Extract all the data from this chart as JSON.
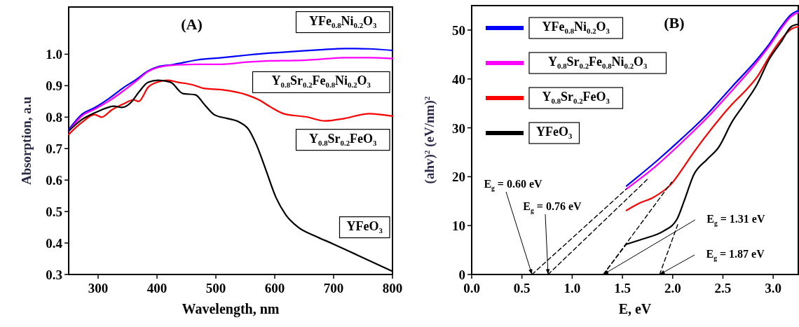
{
  "chart_data": [
    {
      "type": "line",
      "title": "(A)",
      "xlabel": "Wavelength, nm",
      "ylabel": "Absorption, a.u",
      "xlim": [
        250,
        800
      ],
      "ylim": [
        0.3,
        1.15
      ],
      "xticks": [
        300,
        400,
        500,
        600,
        700,
        800
      ],
      "yticks": [
        0.3,
        0.4,
        0.5,
        0.6,
        0.7,
        0.8,
        0.9,
        {
          "value": 1,
          "label": "1.0"
        }
      ],
      "legend": false,
      "series": [
        {
          "name": "YFe$_{0.8}$Ni$_{0.2}$O$_{3}$",
          "color": "#0000ff",
          "x": [
            250,
            273,
            294,
            319,
            344,
            365,
            385,
            402,
            427,
            469,
            510,
            552,
            594,
            635,
            677,
            719,
            760,
            800
          ],
          "values": [
            0.76,
            0.81,
            0.83,
            0.86,
            0.895,
            0.92,
            0.947,
            0.96,
            0.967,
            0.982,
            0.989,
            0.997,
            1.004,
            1.009,
            1.014,
            1.018,
            1.017,
            1.012
          ]
        },
        {
          "name": "Y$_{0.8}$Sr$_{0.2}$Fe$_{0.8}$Ni$_{0.2}$O$_{3}$",
          "color": "#ff00ff",
          "x": [
            250,
            273,
            294,
            319,
            344,
            365,
            385,
            402,
            427,
            469,
            510,
            552,
            594,
            635,
            677,
            719,
            760,
            800
          ],
          "values": [
            0.755,
            0.805,
            0.825,
            0.852,
            0.885,
            0.915,
            0.945,
            0.958,
            0.965,
            0.968,
            0.968,
            0.975,
            0.979,
            0.98,
            0.984,
            0.989,
            0.989,
            0.986
          ]
        },
        {
          "name": "Y$_{0.8}$Sr$_{0.2}$FeO$_{3}$",
          "color": "#ff0000",
          "x": [
            250,
            273,
            294,
            306,
            323,
            344,
            360,
            369,
            385,
            402,
            419,
            435,
            460,
            481,
            510,
            552,
            573,
            594,
            615,
            656,
            685,
            719,
            760,
            800
          ],
          "values": [
            0.745,
            0.784,
            0.808,
            0.8,
            0.823,
            0.843,
            0.855,
            0.85,
            0.895,
            0.912,
            0.917,
            0.911,
            0.903,
            0.891,
            0.887,
            0.871,
            0.855,
            0.831,
            0.811,
            0.8,
            0.788,
            0.796,
            0.811,
            0.803
          ]
        },
        {
          "name": "YFeO$_{3}$",
          "color": "#000000",
          "x": [
            250,
            273,
            302,
            327,
            340,
            356,
            369,
            385,
            402,
            423,
            444,
            465,
            481,
            498,
            519,
            540,
            556,
            569,
            585,
            602,
            619,
            640,
            669,
            698,
            740,
            800
          ],
          "values": [
            0.756,
            0.793,
            0.82,
            0.835,
            0.831,
            0.847,
            0.879,
            0.911,
            0.917,
            0.911,
            0.875,
            0.871,
            0.839,
            0.807,
            0.796,
            0.784,
            0.76,
            0.712,
            0.632,
            0.545,
            0.489,
            0.45,
            0.422,
            0.398,
            0.362,
            0.31
          ]
        }
      ]
    },
    {
      "type": "line",
      "title": "(B)",
      "xlabel": "E, eV",
      "ylabel": "(ahv)$^{2}$ (eV/nm)$^{2}$",
      "xlim": [
        0,
        3.25
      ],
      "ylim": [
        0,
        55
      ],
      "xticks": [
        {
          "value": 0,
          "label": "0.0"
        },
        0.5,
        {
          "value": 1,
          "label": "1.0"
        },
        1.5,
        {
          "value": 2,
          "label": "2.0"
        },
        2.5,
        {
          "value": 3,
          "label": "3.0"
        }
      ],
      "yticks": [
        0,
        10,
        20,
        30,
        40,
        50
      ],
      "legend": "top left",
      "series": [
        {
          "name": "YFe$_{0.8}$Ni$_{0.2}$O$_{3}$",
          "color": "#0000ff",
          "x": [
            1.54,
            1.84,
            2.09,
            2.34,
            2.59,
            2.84,
            2.96,
            3.08,
            3.18,
            3.25
          ],
          "values": [
            18.1,
            23.2,
            27.8,
            32.7,
            38.4,
            44,
            47.1,
            50.7,
            53.2,
            54
          ]
        },
        {
          "name": "Y$_{0.8}$Sr$_{0.2}$Fe$_{0.8}$Ni$_{0.2}$O$_{3}$",
          "color": "#ff00ff",
          "x": [
            1.54,
            1.84,
            2.09,
            2.34,
            2.59,
            2.84,
            2.96,
            3.08,
            3.18,
            3.25
          ],
          "values": [
            17.5,
            22.3,
            27,
            32,
            37.6,
            43.5,
            46.7,
            50.3,
            52.8,
            53.6
          ]
        },
        {
          "name": "Y$_{0.8}$Sr$_{0.2}$FeO$_{3}$",
          "color": "#ff0000",
          "x": [
            1.54,
            1.66,
            1.81,
            1.99,
            2.09,
            2.21,
            2.46,
            2.59,
            2.71,
            2.84,
            2.96,
            3.08,
            3.18,
            3.25
          ],
          "values": [
            13.1,
            14.5,
            15.8,
            18.6,
            21.4,
            25,
            31.7,
            34.8,
            37.3,
            40.4,
            44.5,
            48.1,
            50.2,
            50.7
          ]
        },
        {
          "name": "YFeO$_{3}$",
          "color": "#000000",
          "x": [
            1.54,
            1.71,
            1.91,
            2.04,
            2.11,
            2.21,
            2.34,
            2.46,
            2.59,
            2.71,
            2.84,
            2.96,
            3.08,
            3.18,
            3.25
          ],
          "values": [
            6.2,
            7.3,
            8.9,
            11.2,
            14.8,
            20.4,
            23.5,
            26.1,
            31.2,
            34.8,
            38.9,
            44,
            47.6,
            50.7,
            51.2
          ]
        },
        {
          "type": "line",
          "line_style": "dashed",
          "color": "#000000",
          "x": [
            0.6,
            1.54
          ],
          "values": [
            0,
            17.5
          ]
        },
        {
          "type": "line",
          "line_style": "dashed",
          "color": "#000000",
          "x": [
            0.76,
            1.75
          ],
          "values": [
            0,
            19.5
          ]
        },
        {
          "type": "line",
          "line_style": "dashed",
          "color": "#000000",
          "x": [
            1.31,
            1.99
          ],
          "values": [
            0,
            18.9
          ]
        },
        {
          "type": "line",
          "line_style": "dashed",
          "color": "#000000",
          "x": [
            1.31,
            1.54
          ],
          "values": [
            0,
            6.2
          ]
        },
        {
          "type": "line",
          "line_style": "dashed",
          "color": "#000000",
          "x": [
            1.87,
            2.05
          ],
          "values": [
            0,
            10.2
          ]
        }
      ],
      "annotations": [
        {
          "text": "E$_{g}$ = 0.60 eV",
          "x": 0.6,
          "y": 0
        },
        {
          "text": "E$_{g}$ = 0.76 eV",
          "x": 0.76,
          "y": 0
        },
        {
          "text": "E$_{g}$ = 1.31 eV",
          "x": 1.31,
          "y": 0
        },
        {
          "text": "E$_{g}$ = 1.87 eV",
          "x": 1.87,
          "y": 0
        }
      ]
    }
  ]
}
